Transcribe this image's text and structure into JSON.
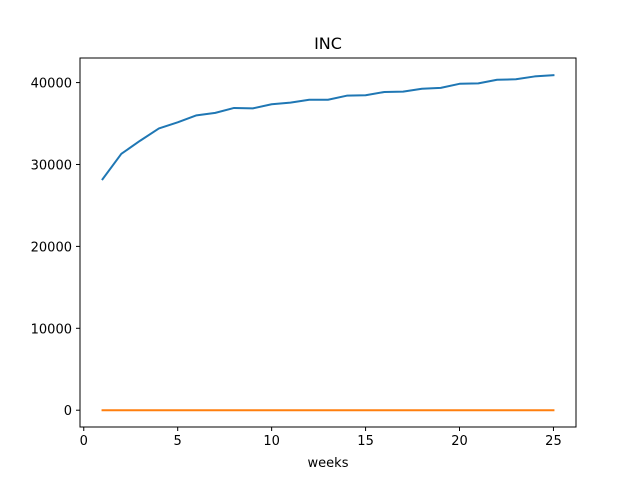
{
  "chart_data": {
    "type": "line",
    "title": "INC",
    "xlabel": "weeks",
    "ylabel": "",
    "xlim": [
      -0.2,
      26.2
    ],
    "ylim": [
      -2050,
      43000
    ],
    "xticks": [
      0,
      5,
      10,
      15,
      20,
      25
    ],
    "yticks": [
      0,
      10000,
      20000,
      30000,
      40000
    ],
    "grid": false,
    "x": [
      1,
      2,
      3,
      4,
      5,
      6,
      7,
      8,
      9,
      10,
      11,
      12,
      13,
      14,
      15,
      16,
      17,
      18,
      19,
      20,
      21,
      22,
      23,
      24,
      25
    ],
    "series": [
      {
        "color": "#1f77b4",
        "values": [
          28200,
          31300,
          32900,
          34400,
          35150,
          36000,
          36300,
          36900,
          36850,
          37350,
          37550,
          37900,
          37900,
          38400,
          38450,
          38850,
          38900,
          39250,
          39350,
          39850,
          39900,
          40350,
          40400,
          40750,
          40900
        ]
      },
      {
        "color": "#ff7f0e",
        "values": [
          0,
          0,
          0,
          0,
          0,
          0,
          0,
          0,
          0,
          0,
          0,
          0,
          0,
          0,
          0,
          0,
          0,
          0,
          0,
          0,
          0,
          0,
          0,
          0,
          0
        ]
      }
    ]
  }
}
